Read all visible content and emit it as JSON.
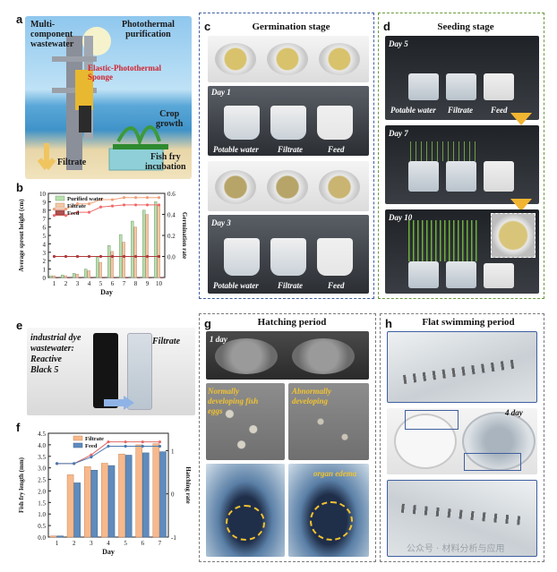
{
  "panels": {
    "a": {
      "label": "a",
      "text_multicomponent": "Multi-\ncomponent\nwastewater",
      "text_photothermal": "Photothermal\npurification",
      "text_sponge": "Elastic-Photothermal\nSponge",
      "text_crop": "Crop\ngrowth",
      "text_filtrate": "Filtrate",
      "text_fishfry": "Fish fry\nincubation"
    },
    "b": {
      "label": "b"
    },
    "c": {
      "label": "c",
      "title": "Germination stage",
      "day1": "Day 1",
      "day3": "Day 3",
      "labels": [
        "Potable water",
        "Filtrate",
        "Feed"
      ]
    },
    "d": {
      "label": "d",
      "title": "Seeding stage",
      "day5": "Day 5",
      "day7": "Day 7",
      "day10": "Day 10",
      "labels": [
        "Potable water",
        "Filtrate",
        "Feed"
      ]
    },
    "e": {
      "label": "e",
      "text_left": "industrial dye\nwastewater:\nReactive\nBlack 5",
      "text_right": "Filtrate"
    },
    "f": {
      "label": "f"
    },
    "g": {
      "label": "g",
      "title": "Hatching period",
      "day": "1 day",
      "normal": "Normally\ndeveloping fish\neggs",
      "abnormal": "Abnormally\ndeveloping",
      "edema": "organ edema"
    },
    "h": {
      "label": "h",
      "title": "Flat swimming period",
      "day": "4 day"
    }
  },
  "watermark": "公众号 · 材料分析与应用",
  "colors": {
    "blue_dash": "#3f5fa0",
    "green_dash": "#6a9a3a",
    "gray_dash": "#7a7a7a",
    "purified": "#b9e0b0",
    "filtrate_bar": "#f3c7a4",
    "feed_bar": "#b05050",
    "f_filtrate": "#f7b98c",
    "f_feed": "#5f8bbd"
  },
  "chart_data": [
    {
      "type": "bar",
      "id": "b",
      "categories": [
        "1",
        "2",
        "3",
        "4",
        "5",
        "6",
        "7",
        "8",
        "9",
        "10"
      ],
      "xlabel": "Day",
      "ylabel": "Average sprout height (cm)",
      "y2label": "Germination rate",
      "ylim": [
        0,
        10
      ],
      "y2lim": [
        -0.2,
        0.6
      ],
      "yticks": [
        "0",
        "1",
        "2",
        "3",
        "4",
        "5",
        "6",
        "7",
        "8",
        "9",
        "10"
      ],
      "y2ticks": [
        "0.0",
        "0.2",
        "0.4",
        "0.6"
      ],
      "legend": [
        "Purified water",
        "Filtrate",
        "Feed"
      ],
      "series": [
        {
          "name": "Purified water",
          "values": [
            0.2,
            0.3,
            0.5,
            1.0,
            2.4,
            3.8,
            5.1,
            6.7,
            8.0,
            9.0
          ]
        },
        {
          "name": "Filtrate",
          "values": [
            0.2,
            0.2,
            0.4,
            0.8,
            1.8,
            3.1,
            4.2,
            6.0,
            7.5,
            8.6
          ]
        },
        {
          "name": "Feed",
          "values": [
            0,
            0,
            0,
            0,
            0,
            0,
            0,
            0,
            0,
            0
          ]
        }
      ],
      "lines": [
        {
          "name": "Purified water",
          "values": [
            0.45,
            0.45,
            0.5,
            0.5,
            0.54,
            0.54,
            0.56,
            0.56,
            0.56,
            0.56
          ]
        },
        {
          "name": "Filtrate",
          "values": [
            0.39,
            0.39,
            0.42,
            0.42,
            0.47,
            0.48,
            0.49,
            0.49,
            0.49,
            0.49
          ]
        },
        {
          "name": "Feed",
          "values": [
            0,
            0,
            0,
            0,
            0,
            0,
            0,
            0,
            0,
            0
          ]
        }
      ]
    },
    {
      "type": "bar",
      "id": "f",
      "categories": [
        "1",
        "2",
        "3",
        "4",
        "5",
        "6",
        "7"
      ],
      "xlabel": "Day",
      "ylabel": "Fish fry length (mm)",
      "y2label": "Hatching rate",
      "ylim": [
        0,
        4.5
      ],
      "y2lim": [
        -1.2,
        1.2
      ],
      "yticks": [
        "0.0",
        "0.5",
        "1.0",
        "1.5",
        "2.0",
        "2.5",
        "3.0",
        "3.5",
        "4.0",
        "4.5"
      ],
      "y2ticks": [
        "-1",
        "0",
        "1"
      ],
      "legend": [
        "Filtrate",
        "Feed"
      ],
      "series": [
        {
          "name": "Filtrate",
          "values": [
            0.05,
            2.7,
            3.05,
            3.2,
            3.6,
            4.0,
            4.05
          ]
        },
        {
          "name": "Feed",
          "values": [
            0.05,
            2.35,
            2.9,
            3.1,
            3.55,
            3.65,
            3.7
          ]
        }
      ],
      "lines": [
        {
          "name": "Filtrate",
          "values": [
            0.5,
            0.5,
            0.7,
            1.0,
            1.0,
            1.0,
            1.0
          ]
        },
        {
          "name": "Feed",
          "values": [
            0.5,
            0.5,
            0.65,
            0.9,
            0.9,
            0.9,
            0.9
          ]
        }
      ]
    }
  ]
}
